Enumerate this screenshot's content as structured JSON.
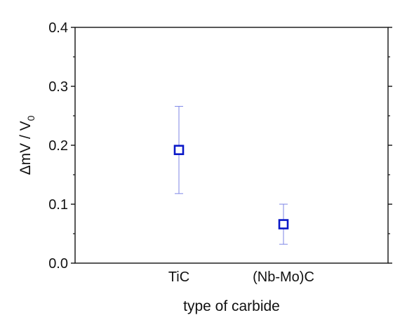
{
  "chart_data": {
    "type": "scatter",
    "xlabel": "type of carbide",
    "ylabel_main": "ΔmV / V",
    "ylabel_sub": "0",
    "categories": [
      "TiC",
      "(Nb-Mo)C"
    ],
    "values": [
      0.192,
      0.066
    ],
    "error_low": [
      0.118,
      0.032
    ],
    "error_high": [
      0.266,
      0.1
    ],
    "ylim": [
      0.0,
      0.4
    ],
    "yticks": [
      "0.0",
      "0.1",
      "0.2",
      "0.3",
      "0.4"
    ],
    "grid": false,
    "legend": "none",
    "marker": "open-square",
    "marker_color": "#0a18c8",
    "errorbar_color": "#7d86e6"
  }
}
